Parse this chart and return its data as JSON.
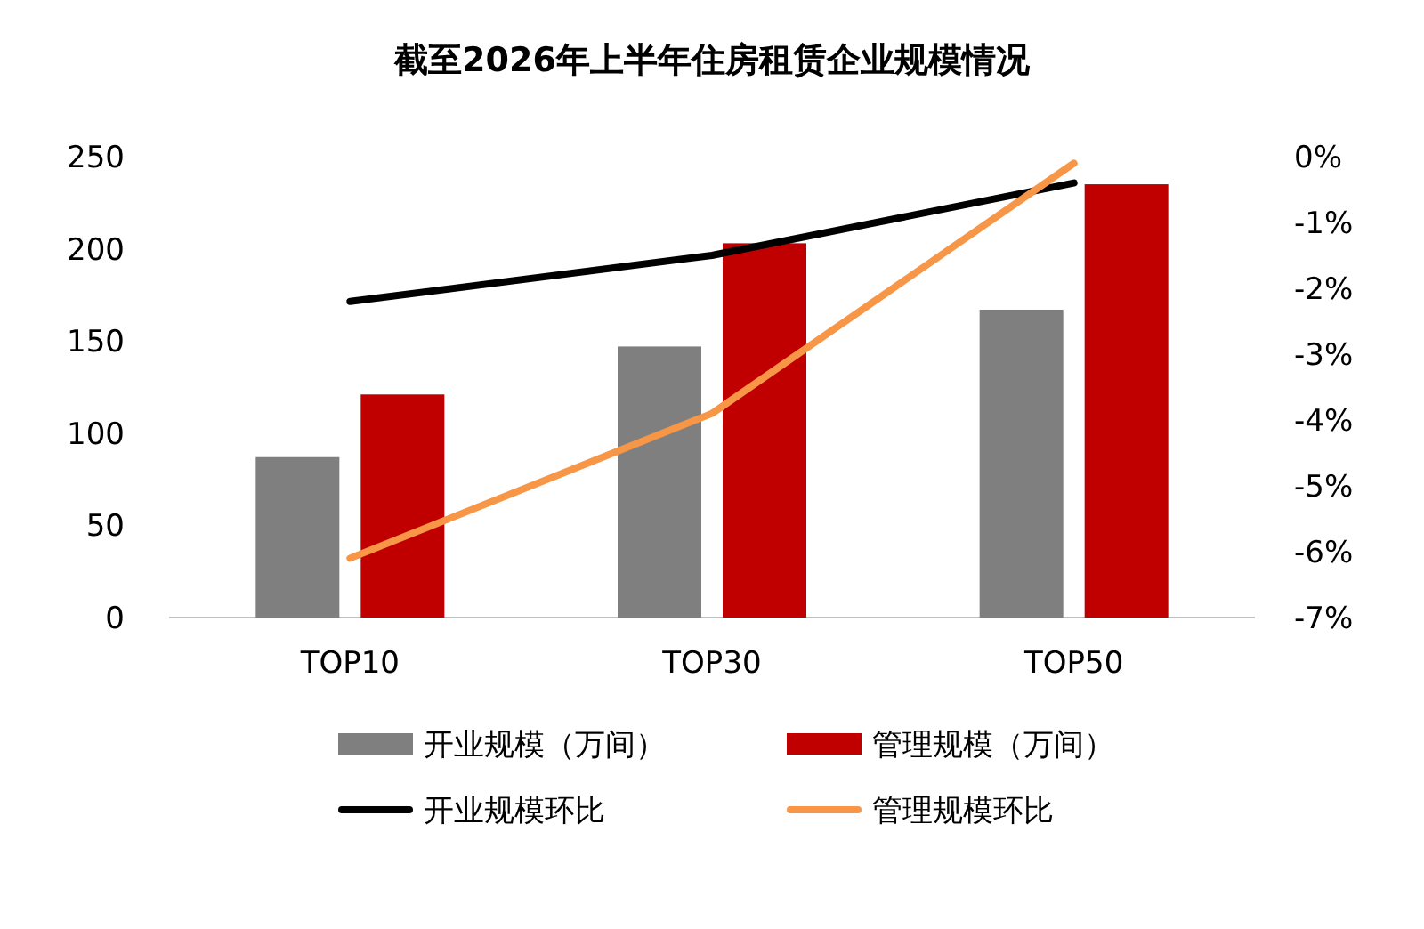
{
  "chart_data": {
    "type": "bar",
    "title": "截至2026年上半年住房租赁企业规模情况",
    "categories": [
      "TOP10",
      "TOP30",
      "TOP50"
    ],
    "series": [
      {
        "name": "开业规模（万间）",
        "color": "#7f7f7f",
        "values": [
          87,
          147,
          167
        ]
      },
      {
        "name": "管理规模（万间）",
        "color": "#c00000",
        "values": [
          121,
          203,
          235
        ]
      },
      {
        "name": "开业规模环比",
        "type": "line",
        "axis": "y2",
        "color": "#000000",
        "values": [
          -2.2,
          -1.5,
          -0.4
        ]
      },
      {
        "name": "管理规模环比",
        "type": "line",
        "axis": "y2",
        "color": "#f79646",
        "values": [
          -6.1,
          -3.9,
          -0.1
        ]
      }
    ],
    "ylim": [
      0,
      250
    ],
    "yticks": [
      0,
      50,
      100,
      150,
      200,
      250
    ],
    "y2lim": [
      -7,
      0
    ],
    "y2ticks": [
      {
        "value": -7,
        "label": "-7%"
      },
      {
        "value": -6,
        "label": "-6%"
      },
      {
        "value": -5,
        "label": "-5%"
      },
      {
        "value": -4,
        "label": "-4%"
      },
      {
        "value": -3,
        "label": "-3%"
      },
      {
        "value": -2,
        "label": "-2%"
      },
      {
        "value": -1,
        "label": "-1%"
      },
      {
        "value": 0,
        "label": "0%"
      }
    ],
    "grid": false,
    "legend": "bottom",
    "marker": "none",
    "line_style": "solid"
  }
}
